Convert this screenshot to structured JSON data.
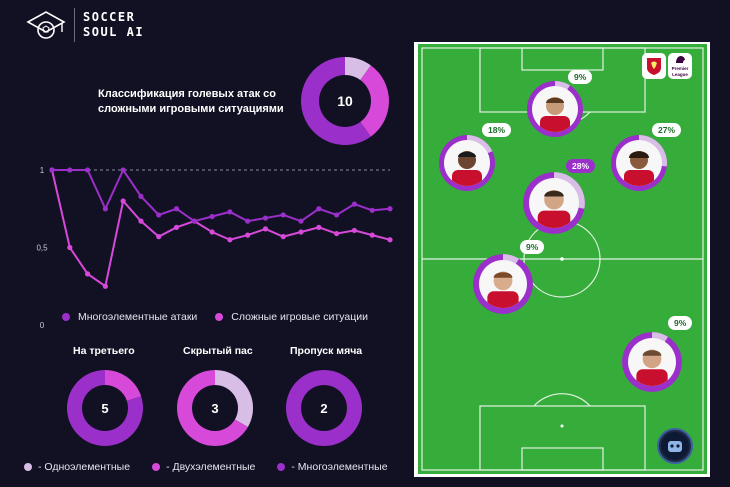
{
  "brand": {
    "line1": "SOCCER",
    "line2": "SOUL AI"
  },
  "main": {
    "title": "Классификация голевых атак со сложными игровыми ситуациями",
    "total": "10"
  },
  "legend_top": {
    "multi": "Многоэлементные атаки",
    "complex": "Сложные игровые ситуации"
  },
  "small": [
    {
      "title": "На третьего",
      "value": "5"
    },
    {
      "title": "Скрытый пас",
      "value": "3"
    },
    {
      "title": "Пропуск мяча",
      "value": "2"
    }
  ],
  "legend_bottom": {
    "one": "- Одноэлементные",
    "two": "- Двухэлементные",
    "many": "- Многоэлементные"
  },
  "colors": {
    "bg": "#121124",
    "purple": "#9b2fc9",
    "magenta": "#d649d9",
    "lilac": "#d8bde6",
    "deep": "#7b1fb0",
    "pitch": "#36ad3b"
  },
  "chart_data": {
    "type": "line",
    "yticks": [
      "1",
      "0,5",
      "0"
    ],
    "ylim": [
      0,
      1
    ],
    "reference_line": 1,
    "x": [
      1,
      2,
      3,
      4,
      5,
      6,
      7,
      8,
      9,
      10,
      11,
      12,
      13,
      14,
      15,
      16,
      17,
      18,
      19,
      20
    ],
    "series": [
      {
        "name": "Многоэлементные атаки",
        "color": "#9b2fc9",
        "values": [
          1,
          1,
          1,
          0.75,
          1,
          0.83,
          0.71,
          0.75,
          0.67,
          0.7,
          0.73,
          0.67,
          0.69,
          0.71,
          0.67,
          0.75,
          0.71,
          0.78,
          0.74,
          0.75
        ]
      },
      {
        "name": "Сложные игровые ситуации",
        "color": "#d649d9",
        "values": [
          1,
          0.5,
          0.33,
          0.25,
          0.8,
          0.67,
          0.57,
          0.63,
          0.67,
          0.6,
          0.55,
          0.58,
          0.62,
          0.57,
          0.6,
          0.63,
          0.59,
          0.61,
          0.58,
          0.55
        ]
      }
    ]
  },
  "donuts": {
    "main": {
      "segments": [
        {
          "value": 1,
          "color": "#d8bde6"
        },
        {
          "value": 3,
          "color": "#d649d9"
        },
        {
          "value": 6,
          "color": "#9b2fc9"
        }
      ]
    },
    "small": [
      {
        "segments": [
          {
            "value": 1,
            "color": "#d649d9"
          },
          {
            "value": 4,
            "color": "#9b2fc9"
          }
        ]
      },
      {
        "segments": [
          {
            "value": 1,
            "color": "#d8bde6"
          },
          {
            "value": 2,
            "color": "#d649d9"
          }
        ]
      },
      {
        "segments": [
          {
            "value": 2,
            "color": "#9b2fc9"
          }
        ]
      }
    ]
  },
  "players": [
    {
      "id": "9",
      "pct": "9%",
      "hl": false,
      "share": 0.09
    },
    {
      "id": "18",
      "pct": "18%",
      "hl": false,
      "share": 0.18
    },
    {
      "id": "27",
      "pct": "27%",
      "hl": false,
      "share": 0.27
    },
    {
      "id": "28",
      "pct": "28%",
      "hl": true,
      "share": 0.28
    },
    {
      "id": "9b",
      "pct": "9%",
      "hl": false,
      "share": 0.09
    },
    {
      "id": "9c",
      "pct": "9%",
      "hl": false,
      "share": 0.09
    }
  ],
  "badges": {
    "premier": "Premier League"
  }
}
